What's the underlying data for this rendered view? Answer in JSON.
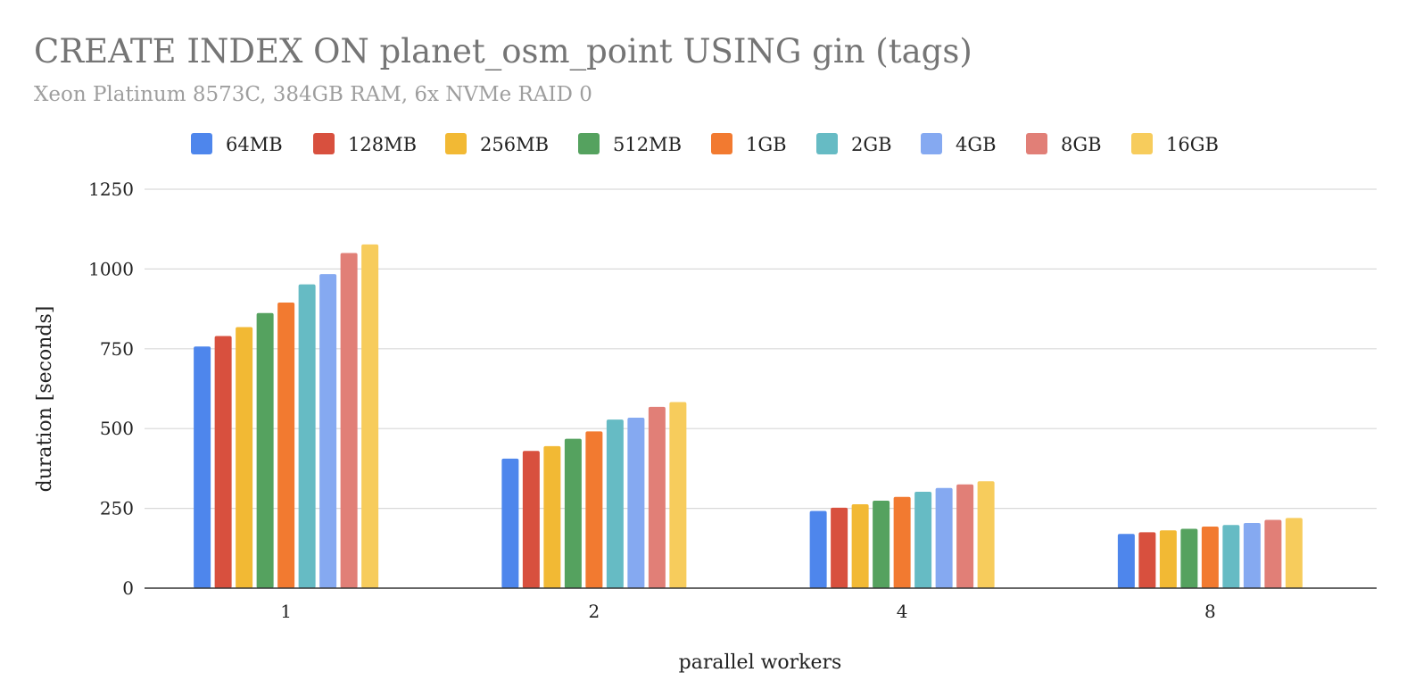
{
  "chart_data": {
    "type": "bar",
    "title": "CREATE INDEX ON planet_osm_point USING gin (tags)",
    "subtitle": "Xeon Platinum 8573C, 384GB RAM, 6x NVMe RAID 0",
    "xlabel": "parallel workers",
    "ylabel": "duration [seconds]",
    "categories": [
      "1",
      "2",
      "4",
      "8"
    ],
    "ylim": [
      0,
      1250
    ],
    "yticks": [
      0,
      250,
      500,
      750,
      1000,
      1250
    ],
    "grid": true,
    "legend_position": "top",
    "series": [
      {
        "name": "64MB",
        "color": "#4e86ec",
        "values": [
          757,
          406,
          242,
          170
        ]
      },
      {
        "name": "128MB",
        "color": "#d8503e",
        "values": [
          790,
          430,
          252,
          175
        ]
      },
      {
        "name": "256MB",
        "color": "#f2b934",
        "values": [
          818,
          445,
          263,
          181
        ]
      },
      {
        "name": "512MB",
        "color": "#55a25f",
        "values": [
          862,
          468,
          274,
          186
        ]
      },
      {
        "name": "1GB",
        "color": "#f27a30",
        "values": [
          895,
          491,
          286,
          193
        ]
      },
      {
        "name": "2GB",
        "color": "#66bbc4",
        "values": [
          952,
          528,
          302,
          198
        ]
      },
      {
        "name": "4GB",
        "color": "#85a9f1",
        "values": [
          984,
          534,
          314,
          204
        ]
      },
      {
        "name": "8GB",
        "color": "#e17f77",
        "values": [
          1050,
          568,
          325,
          214
        ]
      },
      {
        "name": "16GB",
        "color": "#f7cc5c",
        "values": [
          1077,
          583,
          335,
          220
        ]
      }
    ]
  }
}
